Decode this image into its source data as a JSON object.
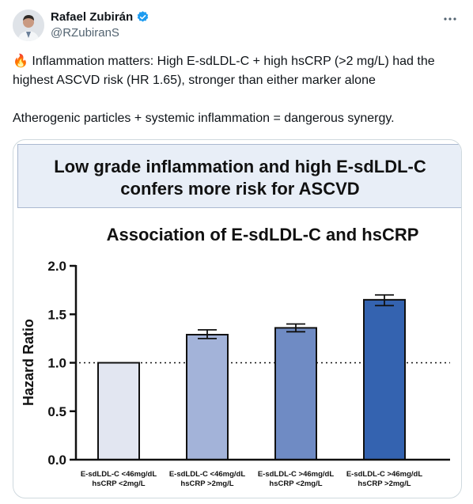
{
  "author": {
    "display_name": "Rafael Zubirán",
    "handle": "@RZubiranS",
    "verified_icon": "verified-badge-icon"
  },
  "tweet": {
    "emoji": "🔥",
    "paragraph1": "Inflammation matters: High E-sdLDL-C + high hsCRP (>2 mg/L) had the highest ASCVD risk (HR 1.65), stronger than either marker alone",
    "paragraph2": "Atherogenic particles + systemic inflammation = dangerous synergy."
  },
  "media": {
    "banner_line1": "Low grade inflammation and high E-sdLDL-C",
    "banner_line2": "confers more risk for ASCVD"
  },
  "chart_data": {
    "type": "bar",
    "title": "Association of E-sdLDL-C and hsCRP",
    "ylabel": "Hazard Ratio",
    "ylim": [
      0,
      2.0
    ],
    "yticks": [
      "0.0",
      "0.5",
      "1.0",
      "1.5",
      "2.0"
    ],
    "reference_line": 1.0,
    "categories": [
      [
        "E-sdLDL-C <46mg/dL",
        "hsCRP <2mg/L"
      ],
      [
        "E-sdLDL-C <46mg/dL",
        "hsCRP >2mg/L"
      ],
      [
        "E-sdLDL-C >46mg/dL",
        "hsCRP <2mg/L"
      ],
      [
        "E-sdLDL-C >46mg/dL",
        "hsCRP >2mg/L"
      ]
    ],
    "values": [
      1.0,
      1.29,
      1.36,
      1.65
    ],
    "error_low": [
      1.0,
      1.25,
      1.32,
      1.59
    ],
    "error_high": [
      1.0,
      1.34,
      1.4,
      1.7
    ],
    "colors": [
      "#e2e6f1",
      "#a3b3d9",
      "#6f8bc4",
      "#3463b0"
    ]
  }
}
